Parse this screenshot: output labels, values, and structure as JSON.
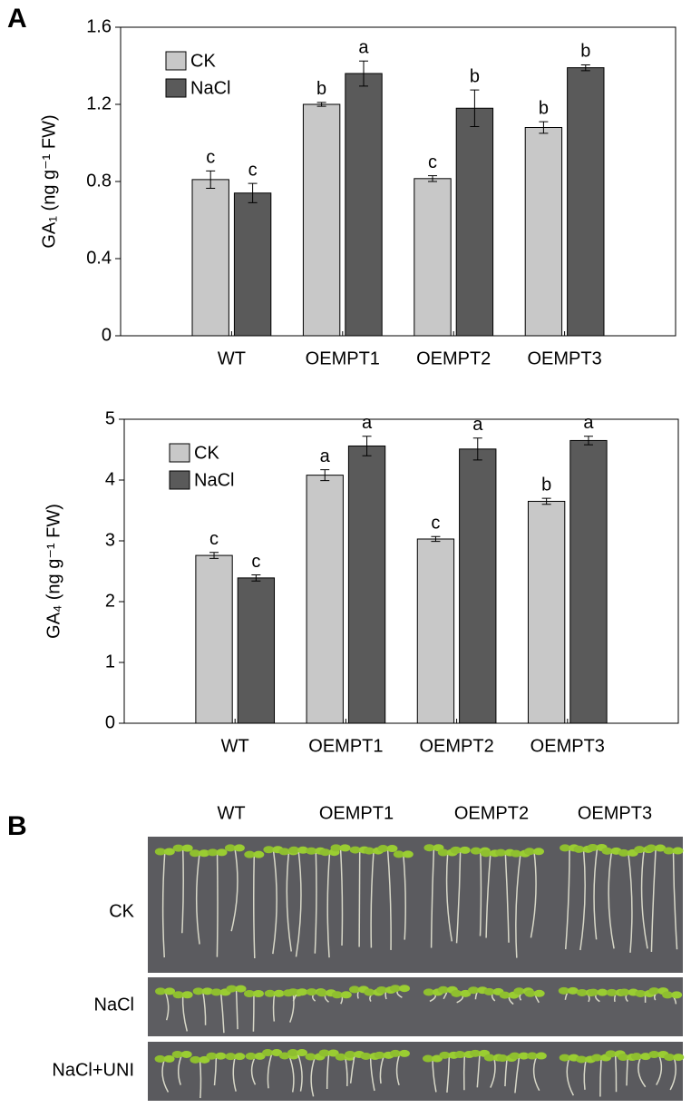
{
  "panel_labels": [
    "A",
    "B"
  ],
  "chart_data": [
    {
      "type": "bar",
      "y_label": "GA₁ (ng g⁻¹ FW)",
      "categories": [
        "WT",
        "OEMPT1",
        "OEMPT2",
        "OEMPT3"
      ],
      "series": [
        {
          "name": "CK",
          "color": "#c8c8c8",
          "values": [
            0.81,
            1.2,
            0.815,
            1.08
          ],
          "errors": [
            0.045,
            0.01,
            0.015,
            0.03
          ],
          "letters": [
            "c",
            "b",
            "c",
            "b"
          ]
        },
        {
          "name": "NaCl",
          "color": "#5a5a5a",
          "values": [
            0.74,
            1.36,
            1.18,
            1.39
          ],
          "errors": [
            0.05,
            0.065,
            0.095,
            0.015
          ],
          "letters": [
            "c",
            "a",
            "b",
            "b"
          ]
        }
      ],
      "ylim": [
        0,
        1.6
      ],
      "yticks": [
        0,
        0.4,
        0.8,
        1.2,
        1.6
      ],
      "legend": "upper left"
    },
    {
      "type": "bar",
      "y_label": "GA₄ (ng g⁻¹ FW)",
      "categories": [
        "WT",
        "OEMPT1",
        "OEMPT2",
        "OEMPT3"
      ],
      "series": [
        {
          "name": "CK",
          "color": "#c8c8c8",
          "values": [
            2.76,
            4.08,
            3.03,
            3.65
          ],
          "errors": [
            0.05,
            0.09,
            0.04,
            0.05
          ],
          "letters": [
            "c",
            "a",
            "c",
            "b"
          ]
        },
        {
          "name": "NaCl",
          "color": "#5a5a5a",
          "values": [
            2.39,
            4.56,
            4.51,
            4.65
          ],
          "errors": [
            0.05,
            0.16,
            0.18,
            0.07
          ],
          "letters": [
            "c",
            "a",
            "a",
            "a"
          ]
        }
      ],
      "ylim": [
        0,
        5
      ],
      "yticks": [
        0,
        1,
        2,
        3,
        4,
        5
      ],
      "legend": "upper left"
    }
  ],
  "photo": {
    "columns": [
      "WT",
      "OEMPT1",
      "OEMPT2",
      "OEMPT3"
    ],
    "rows": [
      "CK",
      "NaCl",
      "NaCl+UNI"
    ]
  }
}
